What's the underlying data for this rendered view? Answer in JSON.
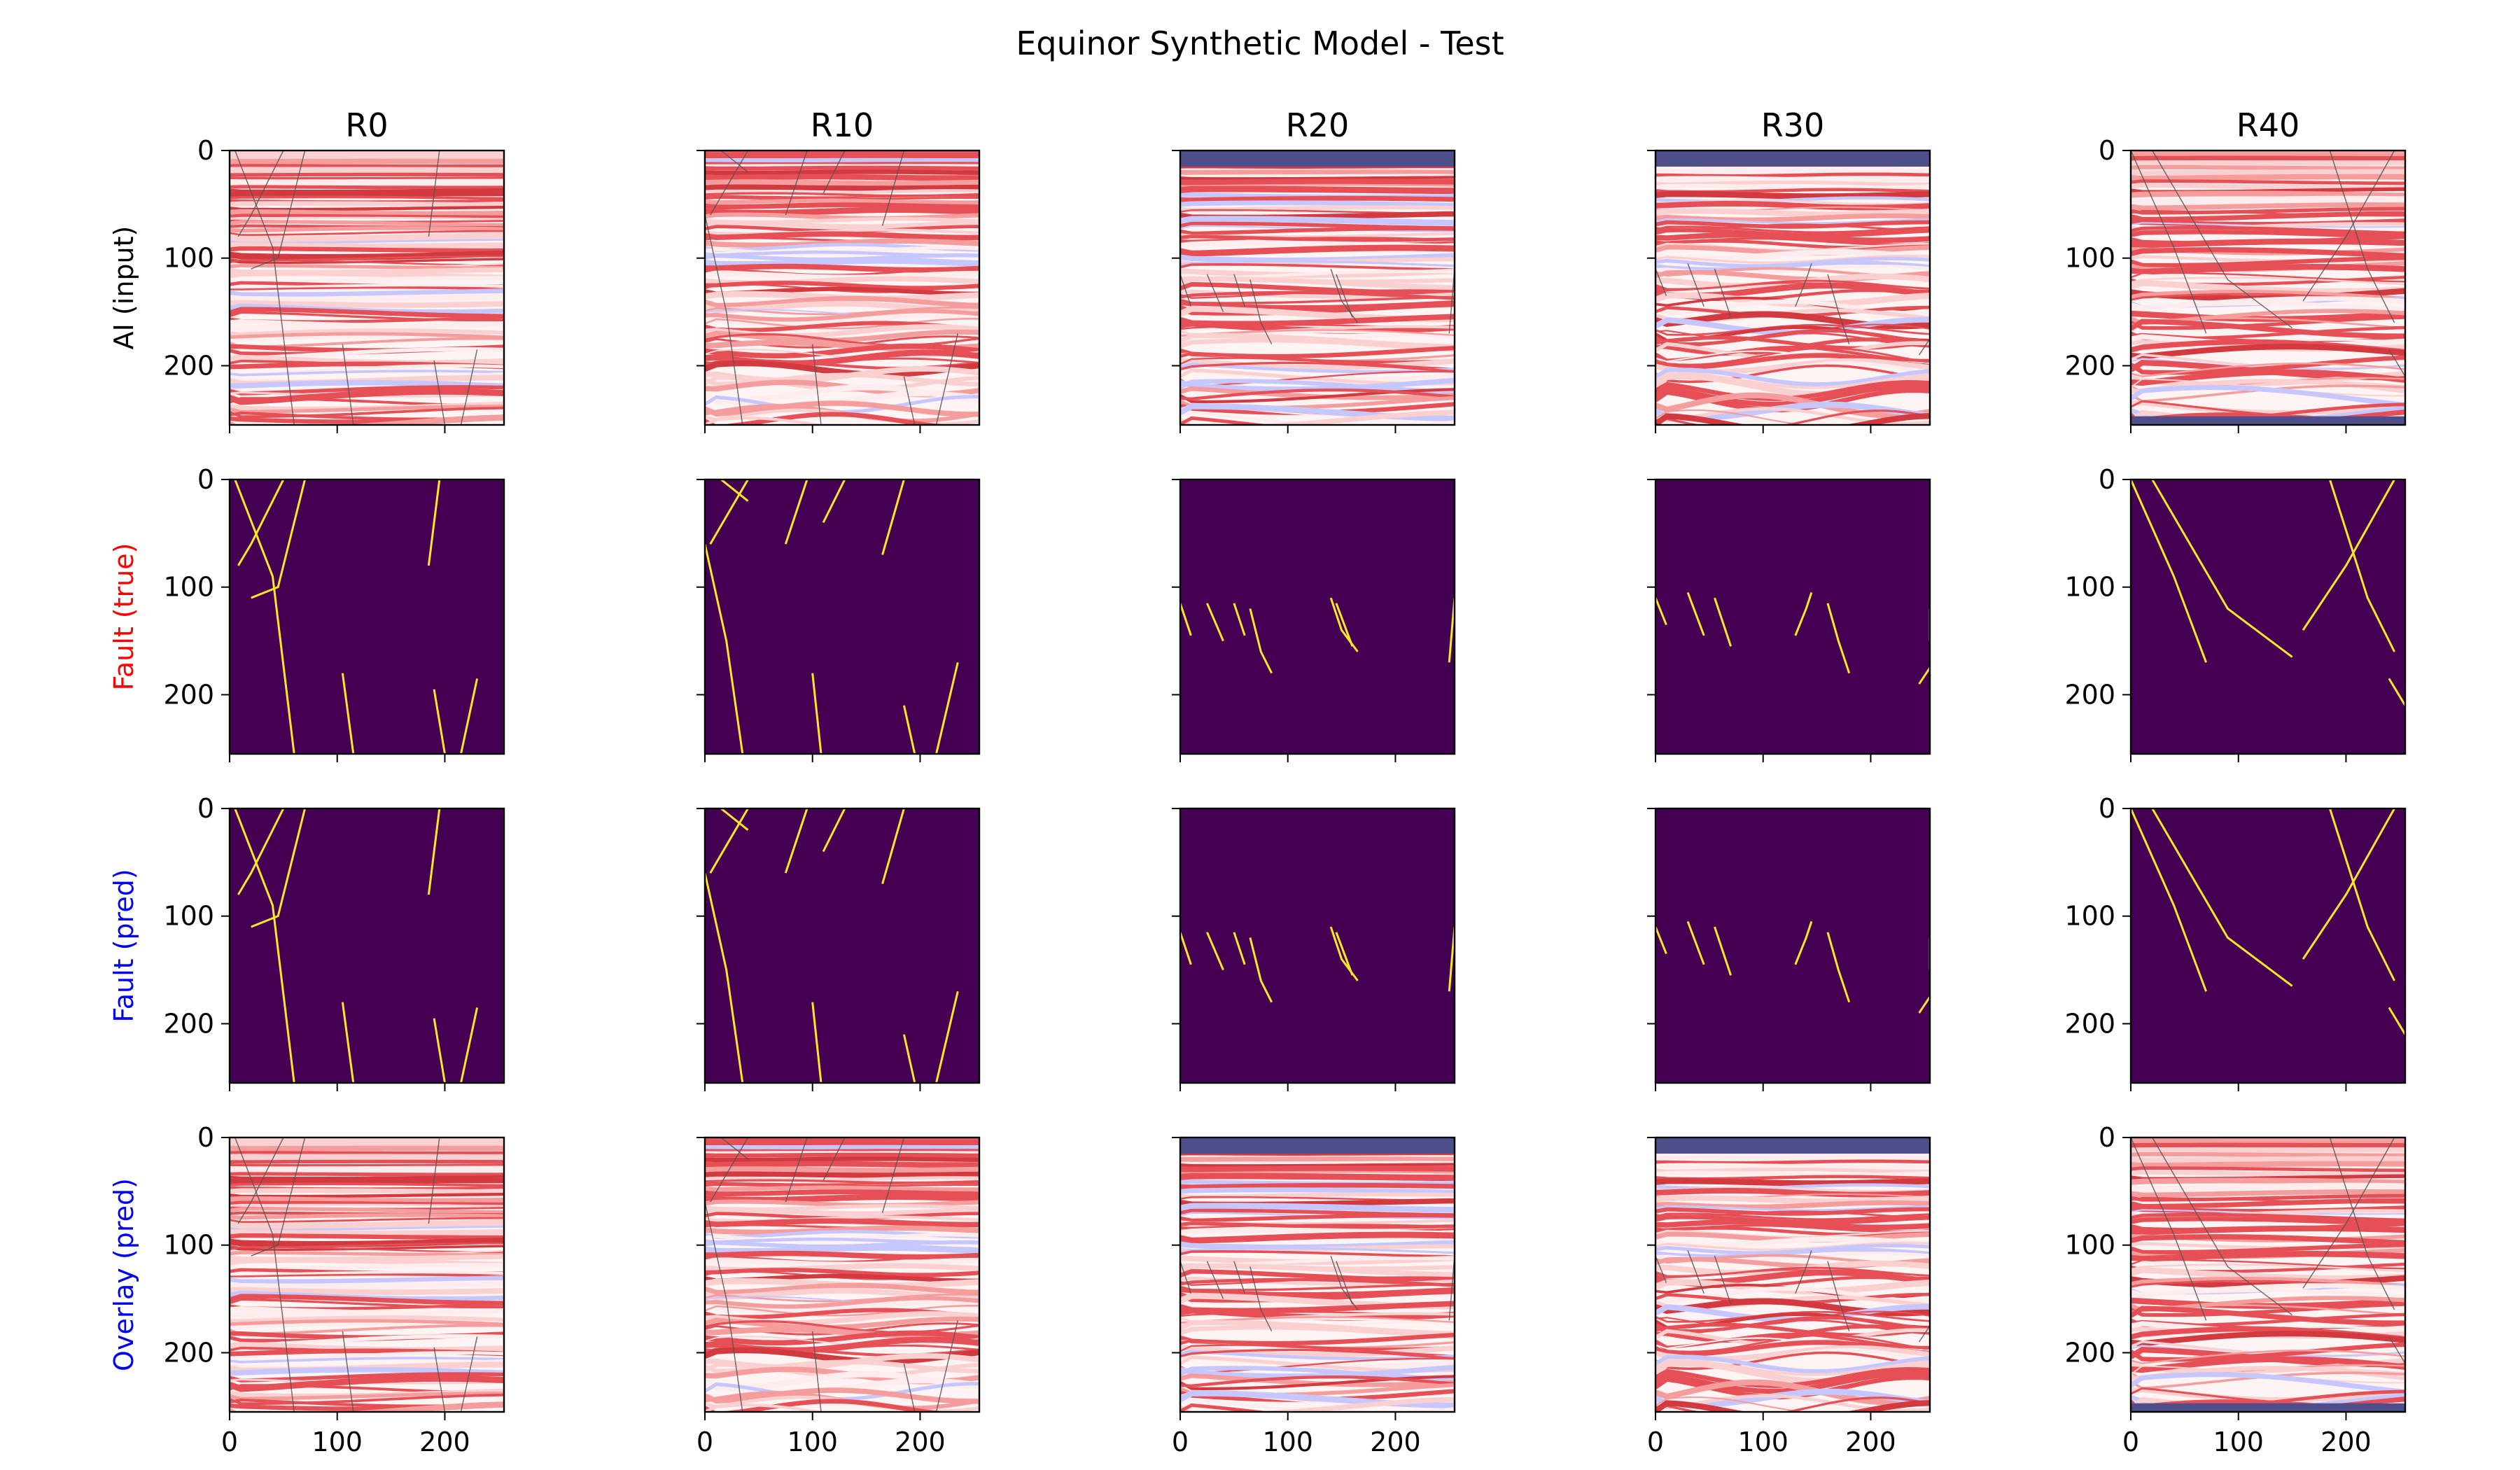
{
  "figure": {
    "title": "Equinor Synthetic Model - Test"
  },
  "colors": {
    "fault_background": "#440154",
    "fault_line": "#fde725",
    "seismic_red": "#d7191c",
    "seismic_blue": "#8f8fff",
    "water_layer": "#4e4e8a",
    "row_label_true": "#ff0000",
    "row_label_pred": "#0000ff",
    "row_label_ai": "#000000"
  },
  "chart_data": {
    "type": "heatmap",
    "columns": [
      "R0",
      "R10",
      "R20",
      "R30",
      "R40"
    ],
    "rows": [
      {
        "label": "AI (input)",
        "label_color": "#000000",
        "kind": "seismic"
      },
      {
        "label": "Fault (true)",
        "label_color": "#ff0000",
        "kind": "fault"
      },
      {
        "label": "Fault (pred)",
        "label_color": "#0000ff",
        "kind": "fault"
      },
      {
        "label": "Overlay (pred)",
        "label_color": "#0000ff",
        "kind": "overlay"
      }
    ],
    "x_ticks": [
      "0",
      "100",
      "200"
    ],
    "y_ticks": [
      "0",
      "100",
      "200"
    ],
    "xlim": [
      0,
      255
    ],
    "ylim": [
      255,
      0
    ],
    "water_layer_depth": {
      "R0": 0,
      "R10": 0,
      "R20": 15,
      "R30": 15,
      "R40": 0
    },
    "bottom_layer": {
      "R0": 0,
      "R10": 0,
      "R20": 0,
      "R30": 0,
      "R40": 8
    },
    "faults": {
      "R0": [
        [
          [
            5,
            0
          ],
          [
            40,
            90
          ],
          [
            60,
            255
          ]
        ],
        [
          [
            50,
            0
          ],
          [
            20,
            60
          ],
          [
            8,
            80
          ]
        ],
        [
          [
            70,
            0
          ],
          [
            45,
            100
          ],
          [
            20,
            110
          ]
        ],
        [
          [
            105,
            180
          ],
          [
            115,
            255
          ]
        ],
        [
          [
            195,
            0
          ],
          [
            185,
            80
          ]
        ],
        [
          [
            190,
            195
          ],
          [
            200,
            255
          ]
        ],
        [
          [
            230,
            185
          ],
          [
            215,
            255
          ]
        ]
      ],
      "R10": [
        [
          [
            0,
            60
          ],
          [
            20,
            150
          ],
          [
            35,
            255
          ]
        ],
        [
          [
            15,
            0
          ],
          [
            40,
            20
          ]
        ],
        [
          [
            40,
            0
          ],
          [
            5,
            60
          ]
        ],
        [
          [
            95,
            0
          ],
          [
            75,
            60
          ]
        ],
        [
          [
            130,
            0
          ],
          [
            110,
            40
          ]
        ],
        [
          [
            185,
            0
          ],
          [
            165,
            70
          ]
        ],
        [
          [
            100,
            180
          ],
          [
            108,
            255
          ]
        ],
        [
          [
            185,
            210
          ],
          [
            195,
            255
          ]
        ],
        [
          [
            235,
            170
          ],
          [
            215,
            255
          ]
        ]
      ],
      "R20": [
        [
          [
            0,
            115
          ],
          [
            10,
            145
          ]
        ],
        [
          [
            25,
            115
          ],
          [
            40,
            150
          ]
        ],
        [
          [
            50,
            115
          ],
          [
            60,
            145
          ]
        ],
        [
          [
            65,
            120
          ],
          [
            75,
            160
          ],
          [
            85,
            180
          ]
        ],
        [
          [
            140,
            110
          ],
          [
            150,
            140
          ],
          [
            165,
            160
          ]
        ],
        [
          [
            145,
            115
          ],
          [
            160,
            155
          ]
        ],
        [
          [
            255,
            110
          ],
          [
            250,
            170
          ]
        ]
      ],
      "R30": [
        [
          [
            0,
            110
          ],
          [
            10,
            135
          ]
        ],
        [
          [
            30,
            105
          ],
          [
            45,
            145
          ]
        ],
        [
          [
            55,
            110
          ],
          [
            70,
            155
          ]
        ],
        [
          [
            145,
            105
          ],
          [
            140,
            120
          ],
          [
            130,
            145
          ]
        ],
        [
          [
            160,
            115
          ],
          [
            170,
            150
          ],
          [
            180,
            180
          ]
        ],
        [
          [
            255,
            120
          ],
          [
            255,
            150
          ]
        ],
        [
          [
            255,
            175
          ],
          [
            245,
            190
          ]
        ]
      ],
      "R40": [
        [
          [
            0,
            0
          ],
          [
            40,
            90
          ],
          [
            70,
            170
          ]
        ],
        [
          [
            20,
            0
          ],
          [
            90,
            120
          ],
          [
            150,
            165
          ]
        ],
        [
          [
            245,
            0
          ],
          [
            200,
            80
          ],
          [
            160,
            140
          ]
        ],
        [
          [
            185,
            0
          ],
          [
            220,
            110
          ],
          [
            245,
            160
          ]
        ],
        [
          [
            240,
            185
          ],
          [
            255,
            210
          ]
        ]
      ]
    }
  }
}
